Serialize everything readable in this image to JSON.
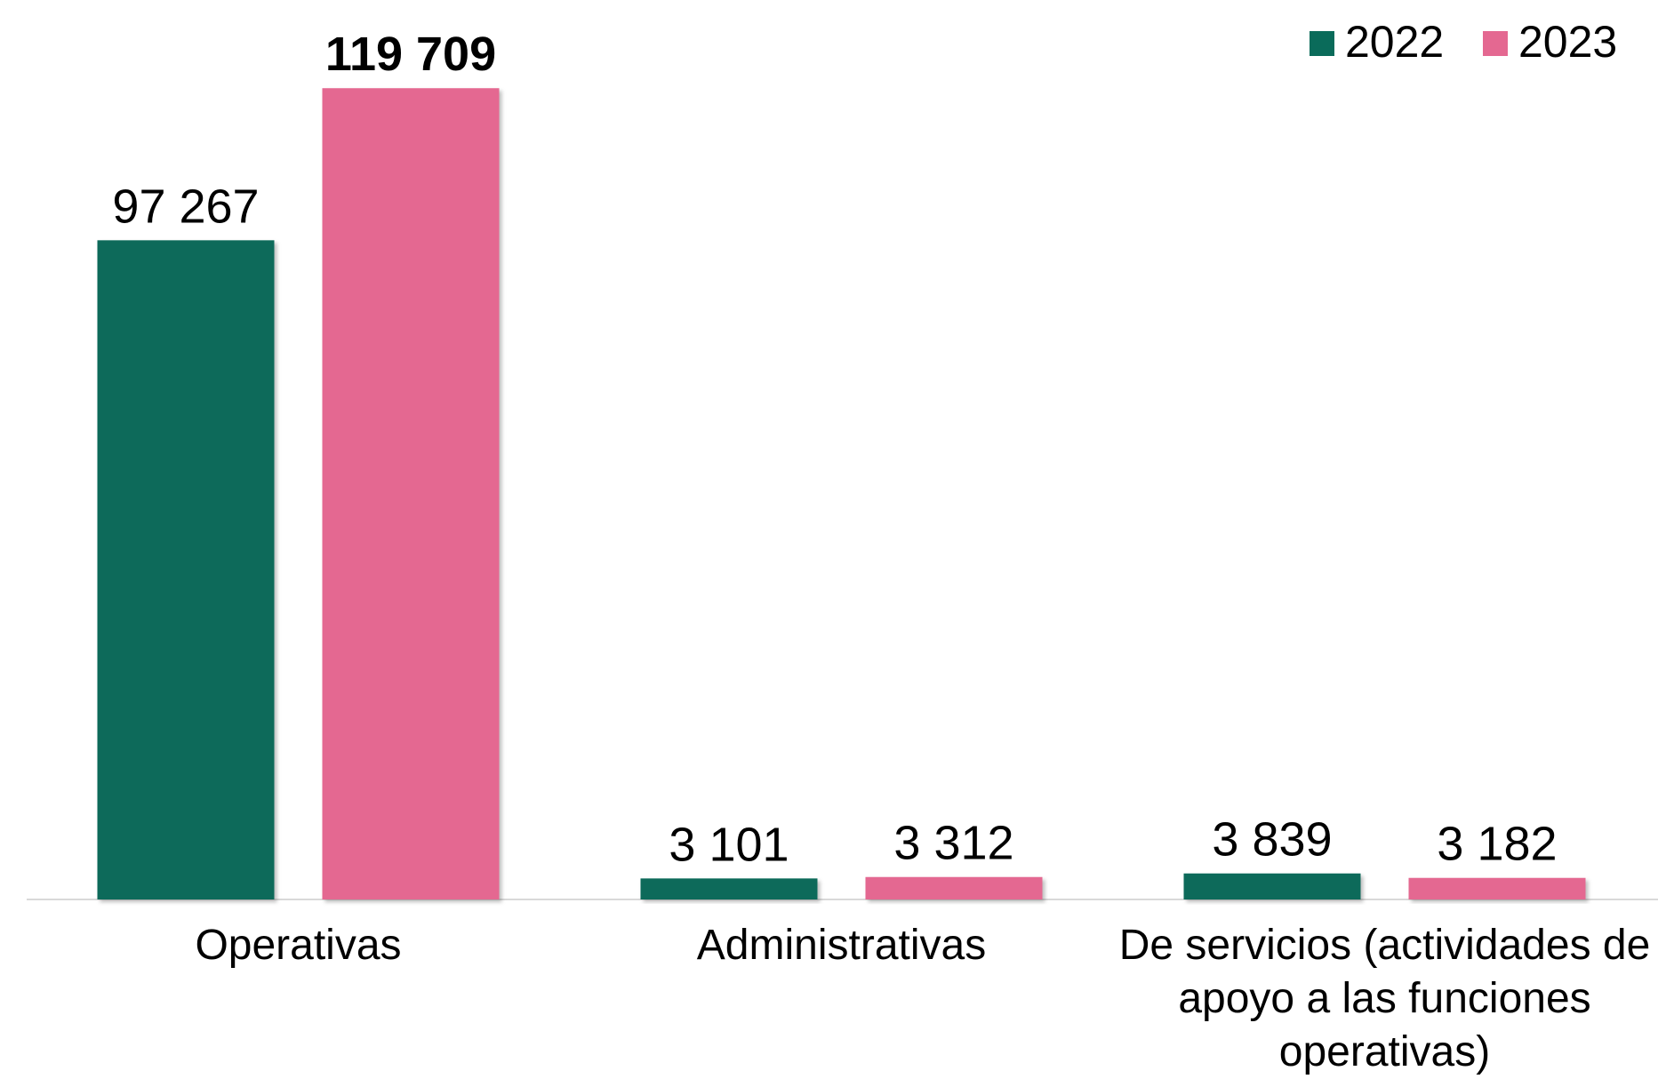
{
  "chart_data": {
    "type": "bar",
    "categories": [
      "Operativas",
      "Administrativas",
      "De servicios (actividades de apoyo a las funciones operativas)"
    ],
    "series": [
      {
        "name": "2022",
        "color": "#0a6b5a",
        "values": [
          97267,
          3101,
          3839
        ],
        "value_labels": [
          "97 267",
          "3 101",
          "3 839"
        ]
      },
      {
        "name": "2023",
        "color": "#e46891",
        "values": [
          119709,
          3312,
          3182
        ],
        "value_labels": [
          "119 709",
          "3 312",
          "3 182"
        ]
      }
    ],
    "ylim": [
      0,
      120000
    ],
    "grid": false,
    "legend": "top-right"
  }
}
